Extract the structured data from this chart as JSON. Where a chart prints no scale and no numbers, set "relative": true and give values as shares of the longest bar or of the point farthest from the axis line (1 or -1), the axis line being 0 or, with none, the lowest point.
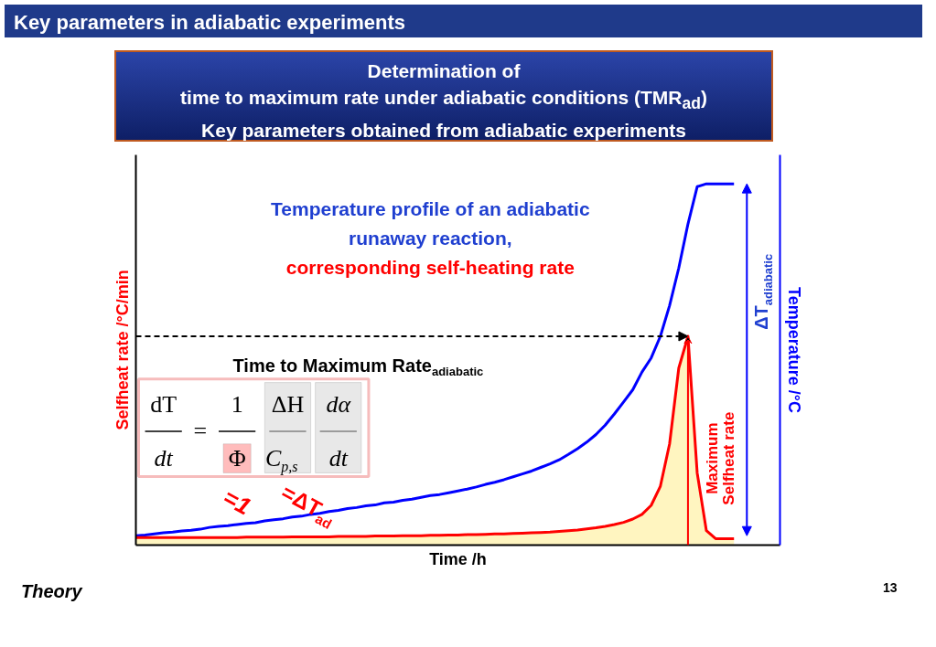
{
  "chart_data": {
    "type": "line",
    "relative": true,
    "title": "Key parameters in adiabatic experiments",
    "subtitle": "Determination of\ntime to maximum rate under adiabatic conditions (TMR$_{ad}$)\nKey parameters obtained from adiabatic experiments",
    "xlabel": "Time /h",
    "ylabel": "Selfheat rate /°C/min",
    "y2label": "Temperature /°C",
    "categories": [
      null,
      null,
      null,
      null,
      null,
      null,
      null,
      null,
      null,
      null,
      null,
      null,
      null,
      null,
      null,
      null,
      null,
      null,
      null,
      null,
      null,
      null,
      null,
      null,
      null,
      null,
      null,
      null,
      null,
      null,
      null,
      null,
      null,
      null,
      null,
      null,
      null,
      null,
      null,
      null,
      null,
      null,
      null,
      null,
      null,
      null,
      null,
      null,
      null,
      null,
      null,
      null,
      null,
      null,
      null,
      null,
      null,
      null,
      null,
      null,
      null,
      null,
      null,
      null,
      null,
      null
    ],
    "series": [
      {
        "color": "#0000ff",
        "values": [
          0.026,
          0.028,
          0.031,
          0.034,
          0.036,
          0.039,
          0.041,
          0.044,
          0.049,
          0.052,
          0.054,
          0.057,
          0.06,
          0.062,
          0.067,
          0.07,
          0.073,
          0.078,
          0.08,
          0.085,
          0.088,
          0.093,
          0.096,
          0.101,
          0.104,
          0.109,
          0.111,
          0.117,
          0.119,
          0.124,
          0.127,
          0.132,
          0.137,
          0.14,
          0.145,
          0.15,
          0.155,
          0.161,
          0.168,
          0.174,
          0.181,
          0.189,
          0.197,
          0.205,
          0.215,
          0.225,
          0.236,
          0.251,
          0.267,
          0.285,
          0.306,
          0.332,
          0.363,
          0.396,
          0.43,
          0.479,
          0.518,
          0.578,
          0.663,
          0.767,
          0.889,
          0.992,
          1,
          1,
          1,
          1
        ]
      },
      {
        "type": "area",
        "color": "#ff0000",
        "values": [
          0.021,
          0.021,
          0.021,
          0.021,
          0.021,
          0.021,
          0.021,
          0.021,
          0.021,
          0.021,
          0.021,
          0.021,
          0.022,
          0.022,
          0.022,
          0.022,
          0.022,
          0.023,
          0.023,
          0.023,
          0.023,
          0.023,
          0.024,
          0.024,
          0.024,
          0.024,
          0.025,
          0.025,
          0.025,
          0.026,
          0.026,
          0.026,
          0.027,
          0.027,
          0.028,
          0.028,
          0.029,
          0.029,
          0.03,
          0.031,
          0.031,
          0.032,
          0.033,
          0.034,
          0.035,
          0.036,
          0.038,
          0.04,
          0.042,
          0.045,
          0.048,
          0.052,
          0.057,
          0.063,
          0.072,
          0.085,
          0.11,
          0.163,
          0.28,
          0.49,
          0.578,
          0.2,
          0.04,
          0.018,
          0.018,
          0.018
        ]
      }
    ],
    "ref_lines": [
      {
        "axis": "y",
        "value": 0.578,
        "label": "Time to Maximum Rate$_{adiabatic}$",
        "line_style": "dashed"
      }
    ],
    "annotations": [
      "Temperature profile of an adiabatic",
      "runaway reaction,",
      "corresponding self-heating rate",
      "dT",
      "dt",
      "=",
      "1",
      "Φ",
      "ΔH",
      "C$_{p,s}$",
      "dα",
      "dt",
      "=1",
      "=ΔT$_{ad}$",
      "ΔT$_{adiabatic}$",
      "Maximum",
      "Selfheat rate",
      "Theory",
      "13"
    ]
  }
}
